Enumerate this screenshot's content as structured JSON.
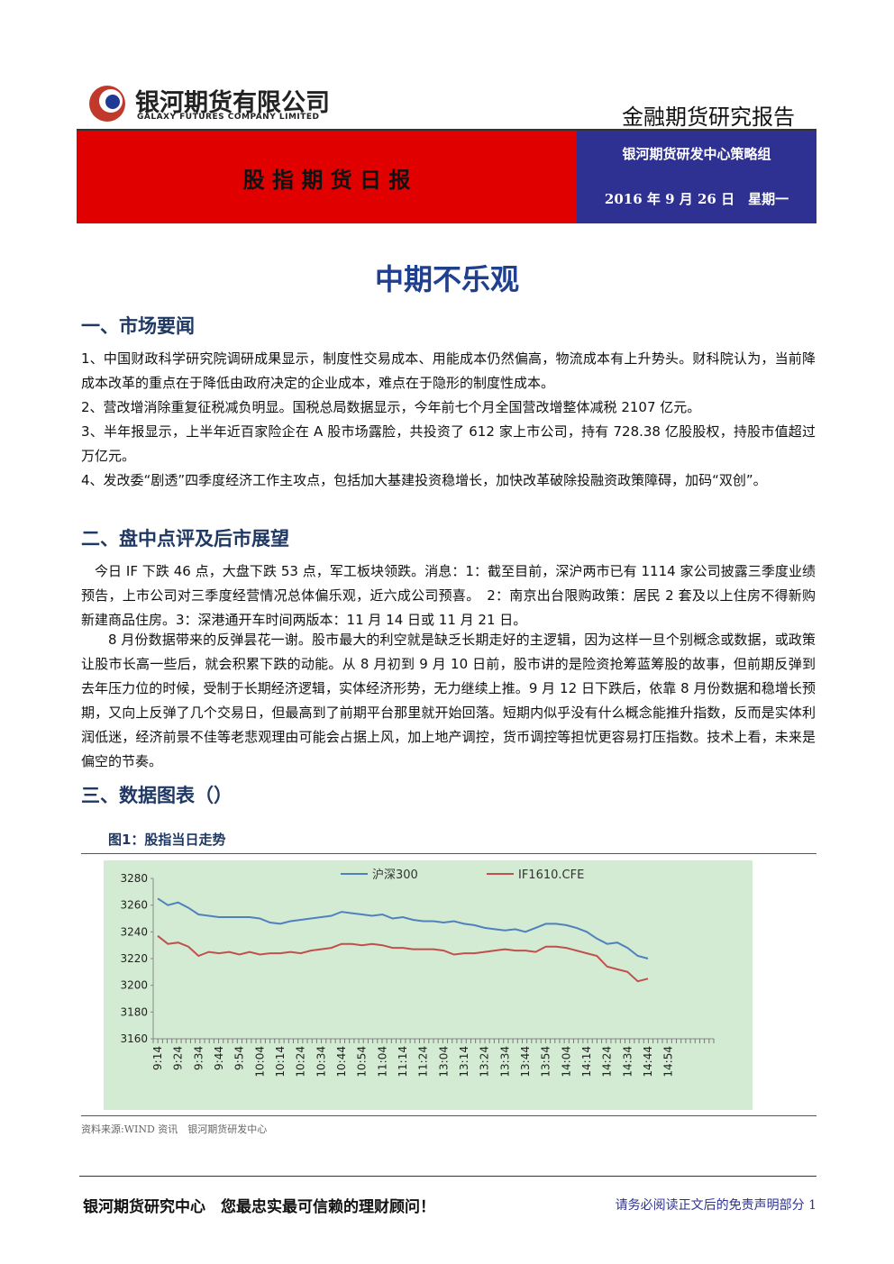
{
  "header": {
    "company_cn": "银河期货有限公司",
    "company_en": "GALAXY FUTURES COMPANY LIMITED",
    "report_type": "金融期货研究报告",
    "report_name": "股 指 期 货 日 报",
    "group": "银河期货研发中心策略组",
    "date": "2016 年 9 月 26 日　星期一"
  },
  "title": "中期不乐观",
  "sections": [
    {
      "heading": "一、市场要闻",
      "paragraphs": [
        "1、中国财政科学研究院调研成果显示，制度性交易成本、用能成本仍然偏高，物流成本有上升势头。财科院认为，当前降成本改革的重点在于降低由政府决定的企业成本，难点在于隐形的制度性成本。",
        "2、营改增消除重复征税减负明显。国税总局数据显示，今年前七个月全国营改增整体减税 2107 亿元。",
        "3、半年报显示，上半年近百家险企在 A 股市场露脸，共投资了 612 家上市公司，持有 728.38 亿股股权，持股市值超过万亿元。",
        "4、发改委“剧透”四季度经济工作主攻点，包括加大基建投资稳增长，加快改革破除投融资政策障碍，加码“双创”。"
      ]
    },
    {
      "heading": "二、盘中点评及后市展望",
      "paragraphs": [
        "今日 IF 下跌 46 点，大盘下跌 53 点，军工板块领跌。消息：1：截至目前，深沪两市已有 1114 家公司披露三季度业绩预告，上市公司对三季度经营情况总体偏乐观，近六成公司预喜。　2：南京出台限购政策：居民 2 套及以上住房不得新购新建商品住房。3：深港通开车时间两版本：11 月 14 日或 11 月 21 日。",
        "8 月份数据带来的反弹昙花一谢。股市最大的利空就是缺乏长期走好的主逻辑，因为这样一旦个别概念或数据，或政策让股市长高一些后，就会积累下跌的动能。从 8 月初到 9 月 10 日前，股市讲的是险资抢筹蓝筹股的故事，但前期反弹到去年压力位的时候，受制于长期经济逻辑，实体经济形势，无力继续上推。9 月 12 日下跌后，依靠 8 月份数据和稳增长预期，又向上反弹了几个交易日，但最高到了前期平台那里就开始回落。短期内似乎没有什么概念能推升指数，反而是实体利润低迷，经济前景不佳等老悲观理由可能会占据上风，加上地产调控，货币调控等担忧更容易打压指数。技术上看，未来是偏空的节奏。"
      ]
    },
    {
      "heading": "三、数据图表（）",
      "paragraphs": []
    }
  ],
  "figure": {
    "caption": "图1：股指当日走势",
    "source": "资料来源:WIND 资讯　银河期货研发中心"
  },
  "chart_data": {
    "type": "line",
    "categories": [
      "9:14",
      null,
      "9:24",
      null,
      "9:34",
      null,
      "9:44",
      null,
      "9:54",
      null,
      "10:04",
      null,
      "10:14",
      null,
      "10:24",
      null,
      "10:34",
      null,
      "10:44",
      null,
      "10:54",
      null,
      "11:04",
      null,
      "11:14",
      null,
      "11:24",
      null,
      "13:04",
      null,
      "13:14",
      null,
      "13:24",
      null,
      "13:34",
      null,
      "13:44",
      null,
      "13:54",
      null,
      "14:04",
      null,
      "14:14",
      null,
      "14:24",
      null,
      "14:34",
      null,
      "14:44",
      null,
      "14:54",
      null,
      null,
      null,
      null
    ],
    "series": [
      {
        "name": "沪深300",
        "color": "#4f81bd",
        "values": [
          3265,
          3260,
          3262,
          3258,
          3253,
          3252,
          3251,
          3251,
          3251,
          3251,
          3250,
          3247,
          3246,
          3248,
          3249,
          3250,
          3251,
          3252,
          3255,
          3254,
          3253,
          3252,
          3253,
          3250,
          3251,
          3249,
          3248,
          3248,
          3247,
          3248,
          3246,
          3245,
          3243,
          3242,
          3241,
          3242,
          3240,
          3243,
          3246,
          3246,
          3245,
          3243,
          3240,
          3235,
          3231,
          3232,
          3228,
          3222,
          3220,
          null,
          null,
          null,
          null,
          null,
          null
        ]
      },
      {
        "name": "IF1610.CFE",
        "color": "#c0504d",
        "values": [
          3237,
          3231,
          3232,
          3229,
          3222,
          3225,
          3224,
          3225,
          3223,
          3225,
          3223,
          3224,
          3224,
          3225,
          3224,
          3226,
          3227,
          3228,
          3231,
          3231,
          3230,
          3231,
          3230,
          3228,
          3228,
          3227,
          3227,
          3227,
          3226,
          3223,
          3224,
          3224,
          3225,
          3226,
          3227,
          3226,
          3226,
          3225,
          3229,
          3229,
          3228,
          3226,
          3224,
          3222,
          3214,
          3212,
          3210,
          3203,
          3205,
          null,
          null,
          null,
          null,
          null,
          null
        ]
      }
    ],
    "ylim": [
      3160,
      3280
    ],
    "yticks": [
      3160,
      3180,
      3200,
      3220,
      3240,
      3260,
      3280
    ],
    "grid": false,
    "legend": "top"
  },
  "footer": {
    "slogan": "银河期货研究中心　您最忠实最可信赖的理财顾问！",
    "note": "请务必阅读正文后的免责声明部分 1"
  }
}
